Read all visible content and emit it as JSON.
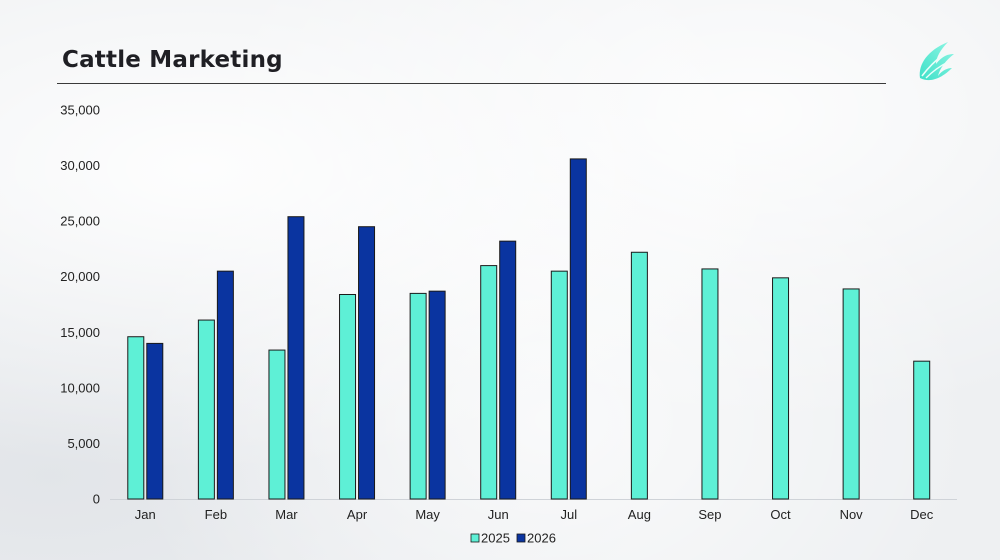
{
  "title": "Cattle Marketing",
  "logo_icon": "leaf-wave-icon",
  "colors": {
    "series_2025": "#5ef0d6",
    "series_2026": "#0a34a0",
    "bar_stroke": "#1a1a1a",
    "axis": "#cfd3d8"
  },
  "chart_data": {
    "type": "bar",
    "title": "Cattle Marketing",
    "xlabel": "",
    "ylabel": "",
    "ylim": [
      0,
      35000
    ],
    "yticks": [
      0,
      5000,
      10000,
      15000,
      20000,
      25000,
      30000,
      35000
    ],
    "ytick_labels": [
      "0",
      "5,000",
      "10,000",
      "15,000",
      "20,000",
      "25,000",
      "30,000",
      "35,000"
    ],
    "grid": false,
    "legend_position": "bottom",
    "categories": [
      "Jan",
      "Feb",
      "Mar",
      "Apr",
      "May",
      "Jun",
      "Jul",
      "Aug",
      "Sep",
      "Oct",
      "Nov",
      "Dec"
    ],
    "series": [
      {
        "name": "2025",
        "values": [
          14600,
          16100,
          13400,
          18400,
          18500,
          21000,
          20500,
          22200,
          20700,
          19900,
          18900,
          12400
        ]
      },
      {
        "name": "2026",
        "values": [
          14000,
          20500,
          25400,
          24500,
          18700,
          23200,
          30600,
          null,
          null,
          null,
          null,
          null
        ]
      }
    ]
  }
}
